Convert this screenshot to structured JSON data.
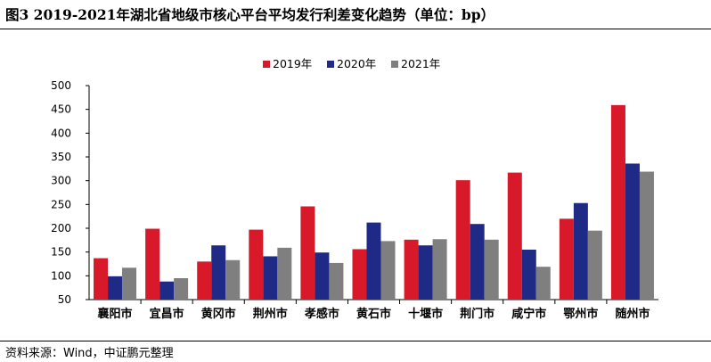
{
  "figure_title": "图3  2019-2021年湖北省地级市核心平台平均发行利差变化趋势（单位：bp）",
  "source_note": "资料来源：Wind，中证鹏元整理",
  "chart_data": {
    "type": "bar",
    "categories": [
      "襄阳市",
      "宜昌市",
      "黄冈市",
      "荆州市",
      "孝感市",
      "黄石市",
      "十堰市",
      "荆门市",
      "咸宁市",
      "鄂州市",
      "随州市"
    ],
    "series": [
      {
        "name": "2019年",
        "color": "#d7192a",
        "values": [
          137,
          199,
          130,
          197,
          246,
          156,
          176,
          301,
          317,
          220,
          459
        ]
      },
      {
        "name": "2020年",
        "color": "#1f2a86",
        "values": [
          99,
          88,
          164,
          141,
          149,
          212,
          164,
          209,
          155,
          253,
          336
        ]
      },
      {
        "name": "2021年",
        "color": "#7f7f7f",
        "values": [
          117,
          95,
          133,
          159,
          127,
          173,
          177,
          176,
          119,
          195,
          319
        ]
      }
    ],
    "ylim": [
      50,
      500
    ],
    "yticks": [
      50,
      100,
      150,
      200,
      250,
      300,
      350,
      400,
      450,
      500
    ],
    "grid": false,
    "legend_position": "top-center"
  }
}
